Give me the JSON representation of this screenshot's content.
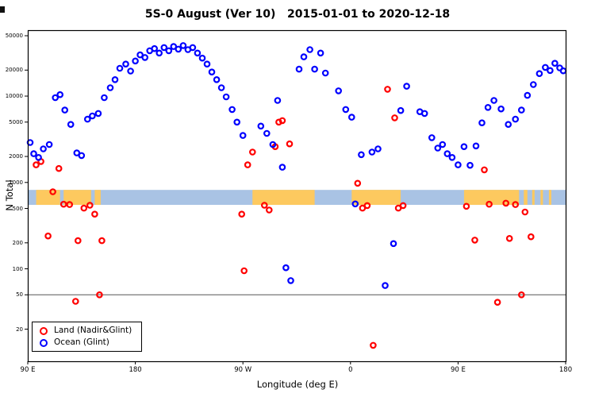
{
  "figure": {
    "title": "5S-0 August (Ver 10)   2015-01-01 to 2020-12-18",
    "xlabel": "Longitude (deg E)",
    "ylabel": "N Total"
  },
  "legend": {
    "entries": [
      {
        "label": "Land (Nadir&Glint)",
        "color": "#ff0000"
      },
      {
        "label": "Ocean (Glint)",
        "color": "#0000ff"
      }
    ]
  },
  "chart_data": {
    "type": "scatter",
    "title": "5S-0 August (Ver 10)   2015-01-01 to 2020-12-18",
    "xlabel": "Longitude (deg E)",
    "ylabel": "N Total",
    "x_axis": {
      "range": [
        90,
        540
      ],
      "ticks": [
        {
          "label": "90 E",
          "lon": 90
        },
        {
          "label": "180",
          "lon": 180
        },
        {
          "label": "90 W",
          "lon": 270
        },
        {
          "label": "0",
          "lon": 360
        },
        {
          "label": "90 E",
          "lon": 450
        },
        {
          "label": "180",
          "lon": 540
        }
      ]
    },
    "y_axis": {
      "scale": "log",
      "range": [
        8.5,
        58000
      ],
      "ticks": [
        20,
        50,
        100,
        200,
        500,
        1000,
        2000,
        5000,
        10000,
        20000,
        50000
      ]
    },
    "reference_line_y": 50,
    "map_band": {
      "value_range": [
        550,
        820
      ],
      "ocean_color": "#a9c3e4",
      "land_color": "#fdc95f",
      "land_segments": [
        [
          97,
          117
        ],
        [
          120,
          143
        ],
        [
          146,
          151
        ],
        [
          278,
          330
        ],
        [
          361,
          402
        ],
        [
          455,
          501
        ],
        [
          505,
          508
        ],
        [
          512,
          514
        ],
        [
          519,
          521
        ],
        [
          526,
          528
        ]
      ]
    },
    "series": [
      {
        "name": "Land (Nadir&Glint)",
        "color": "#ff0000",
        "points": [
          [
            97,
            1600
          ],
          [
            101,
            1750
          ],
          [
            107,
            240
          ],
          [
            111,
            780
          ],
          [
            116,
            1450
          ],
          [
            120,
            560
          ],
          [
            125,
            555
          ],
          [
            130,
            42
          ],
          [
            132,
            212
          ],
          [
            137,
            505
          ],
          [
            142,
            545
          ],
          [
            146,
            430
          ],
          [
            150,
            50
          ],
          [
            152,
            212
          ],
          [
            269,
            430
          ],
          [
            271,
            95
          ],
          [
            274,
            1600
          ],
          [
            278,
            2250
          ],
          [
            288,
            545
          ],
          [
            292,
            480
          ],
          [
            297,
            2600
          ],
          [
            300,
            5000
          ],
          [
            303,
            5200
          ],
          [
            309,
            2800
          ],
          [
            366,
            980
          ],
          [
            370,
            505
          ],
          [
            374,
            540
          ],
          [
            379,
            13
          ],
          [
            391,
            12000
          ],
          [
            397,
            5600
          ],
          [
            400,
            505
          ],
          [
            404,
            540
          ],
          [
            457,
            530
          ],
          [
            464,
            215
          ],
          [
            472,
            1400
          ],
          [
            476,
            560
          ],
          [
            483,
            41
          ],
          [
            490,
            575
          ],
          [
            493,
            225
          ],
          [
            498,
            555
          ],
          [
            503,
            50
          ],
          [
            506,
            455
          ],
          [
            511,
            235
          ]
        ]
      },
      {
        "name": "Ocean (Glint)",
        "color": "#0000ff",
        "points": [
          [
            92,
            2900
          ],
          [
            95,
            2150
          ],
          [
            99,
            1950
          ],
          [
            103,
            2450
          ],
          [
            108,
            2750
          ],
          [
            113,
            9600
          ],
          [
            117,
            10400
          ],
          [
            121,
            6900
          ],
          [
            126,
            4700
          ],
          [
            131,
            2200
          ],
          [
            135,
            2050
          ],
          [
            140,
            5400
          ],
          [
            144,
            5900
          ],
          [
            149,
            6300
          ],
          [
            154,
            9600
          ],
          [
            159,
            12500
          ],
          [
            163,
            15500
          ],
          [
            167,
            21000
          ],
          [
            172,
            23500
          ],
          [
            176,
            19500
          ],
          [
            180,
            25500
          ],
          [
            184,
            30000
          ],
          [
            188,
            28000
          ],
          [
            192,
            33500
          ],
          [
            196,
            35500
          ],
          [
            200,
            31500
          ],
          [
            204,
            36500
          ],
          [
            208,
            33500
          ],
          [
            212,
            37500
          ],
          [
            216,
            35000
          ],
          [
            220,
            38500
          ],
          [
            224,
            34500
          ],
          [
            228,
            36500
          ],
          [
            232,
            31500
          ],
          [
            236,
            27500
          ],
          [
            240,
            23500
          ],
          [
            244,
            19000
          ],
          [
            248,
            15500
          ],
          [
            252,
            12500
          ],
          [
            256,
            9800
          ],
          [
            261,
            7000
          ],
          [
            265,
            5000
          ],
          [
            270,
            3500
          ],
          [
            285,
            4500
          ],
          [
            290,
            3700
          ],
          [
            295,
            2750
          ],
          [
            299,
            8900
          ],
          [
            303,
            1500
          ],
          [
            306,
            103
          ],
          [
            310,
            73
          ],
          [
            317,
            20500
          ],
          [
            321,
            28500
          ],
          [
            326,
            34500
          ],
          [
            330,
            20500
          ],
          [
            335,
            31500
          ],
          [
            339,
            18500
          ],
          [
            350,
            11500
          ],
          [
            356,
            7000
          ],
          [
            361,
            5700
          ],
          [
            364,
            565
          ],
          [
            369,
            2100
          ],
          [
            378,
            2250
          ],
          [
            383,
            2450
          ],
          [
            389,
            64
          ],
          [
            396,
            196
          ],
          [
            402,
            6800
          ],
          [
            407,
            13000
          ],
          [
            418,
            6600
          ],
          [
            422,
            6300
          ],
          [
            428,
            3300
          ],
          [
            433,
            2500
          ],
          [
            437,
            2750
          ],
          [
            441,
            2150
          ],
          [
            445,
            1950
          ],
          [
            450,
            1600
          ],
          [
            455,
            2600
          ],
          [
            460,
            1580
          ],
          [
            465,
            2650
          ],
          [
            470,
            4900
          ],
          [
            475,
            7400
          ],
          [
            480,
            8900
          ],
          [
            486,
            7100
          ],
          [
            492,
            4700
          ],
          [
            498,
            5400
          ],
          [
            503,
            6900
          ],
          [
            508,
            10200
          ],
          [
            513,
            13600
          ],
          [
            518,
            18200
          ],
          [
            523,
            21500
          ],
          [
            527,
            19800
          ],
          [
            531,
            24000
          ],
          [
            535,
            21200
          ],
          [
            538,
            19600
          ]
        ]
      }
    ]
  }
}
